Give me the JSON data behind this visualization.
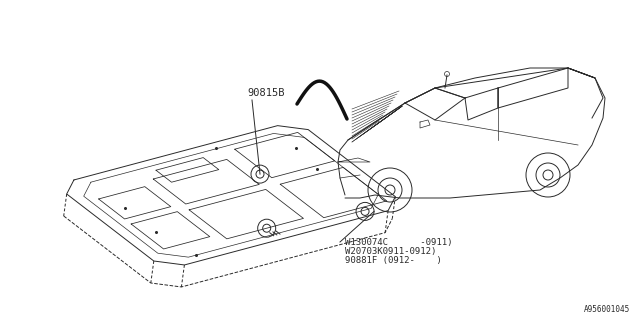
{
  "bg_color": "#ffffff",
  "line_color": "#2a2a2a",
  "part_label_1": "90815B",
  "part_label_2": "W130074C      -0911)",
  "part_label_3": "W20703K0911-0912)",
  "part_label_4": "90881F (0912-    )",
  "diagram_id": "A956001045",
  "font_size_parts": 6.5,
  "font_size_id": 5.5
}
